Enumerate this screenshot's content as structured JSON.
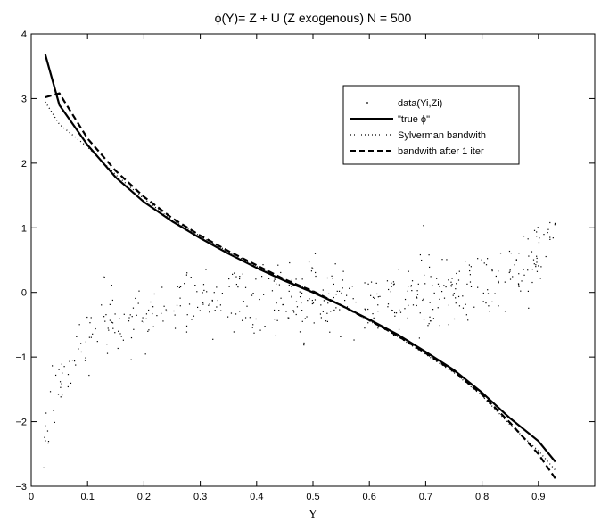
{
  "chart_data": {
    "type": "line",
    "title": "ϕ(Y)= Z + U  (Z exogenous)     N = 500",
    "xlabel": "Y",
    "ylabel": "",
    "xlim": [
      0,
      1
    ],
    "ylim": [
      -3,
      4
    ],
    "xticks": [
      0,
      0.1,
      0.2,
      0.3,
      0.4,
      0.5,
      0.6,
      0.7,
      0.8,
      0.9
    ],
    "xtick_labels": [
      "0",
      "0.1",
      "0.2",
      "0.3",
      "0.4",
      "0.5",
      "0.6",
      "0.7",
      "0.8",
      "0.9"
    ],
    "yticks": [
      -3,
      -2,
      -1,
      0,
      1,
      2,
      3,
      4
    ],
    "ytick_labels": [
      "−3",
      "−2",
      "−1",
      "0",
      "1",
      "2",
      "3",
      "4"
    ],
    "grid": false,
    "legend_position": "top-right",
    "scatter": {
      "name": "data(Yi,Zi)",
      "count": 500,
      "x_range": [
        0.02,
        0.93
      ],
      "center_formula": "2.05 - 4.3*Y + 1.1*ln(Y/(1-Y))",
      "spread": 0.28
    },
    "series": [
      {
        "name": "\"true ϕ\"",
        "style": "solid",
        "x": [
          0.025,
          0.05,
          0.1,
          0.15,
          0.2,
          0.25,
          0.3,
          0.35,
          0.4,
          0.45,
          0.5,
          0.55,
          0.6,
          0.65,
          0.7,
          0.75,
          0.8,
          0.85,
          0.9,
          0.93
        ],
        "y": [
          3.68,
          2.9,
          2.28,
          1.78,
          1.4,
          1.1,
          0.84,
          0.6,
          0.38,
          0.18,
          0.0,
          -0.2,
          -0.42,
          -0.65,
          -0.92,
          -1.2,
          -1.55,
          -1.95,
          -2.3,
          -2.62
        ]
      },
      {
        "name": "Sylverman bandwith",
        "style": "dotted",
        "x": [
          0.025,
          0.05,
          0.1,
          0.15,
          0.2,
          0.25,
          0.3,
          0.35,
          0.4,
          0.45,
          0.5,
          0.55,
          0.6,
          0.65,
          0.7,
          0.75,
          0.8,
          0.85,
          0.9,
          0.93
        ],
        "y": [
          2.95,
          2.6,
          2.25,
          1.82,
          1.45,
          1.12,
          0.87,
          0.63,
          0.4,
          0.19,
          0.02,
          -0.2,
          -0.44,
          -0.68,
          -0.96,
          -1.24,
          -1.6,
          -2.05,
          -2.45,
          -2.75
        ]
      },
      {
        "name": "bandwith after 1 iter",
        "style": "dashed",
        "x": [
          0.025,
          0.05,
          0.1,
          0.15,
          0.2,
          0.25,
          0.3,
          0.35,
          0.4,
          0.45,
          0.5,
          0.55,
          0.6,
          0.65,
          0.7,
          0.75,
          0.8,
          0.85,
          0.9,
          0.93
        ],
        "y": [
          3.02,
          3.08,
          2.38,
          1.88,
          1.48,
          1.15,
          0.88,
          0.64,
          0.42,
          0.2,
          0.02,
          -0.2,
          -0.43,
          -0.67,
          -0.94,
          -1.22,
          -1.58,
          -2.02,
          -2.5,
          -2.88
        ]
      }
    ],
    "colors": {
      "foreground": "#000000",
      "background": "#ffffff"
    }
  }
}
